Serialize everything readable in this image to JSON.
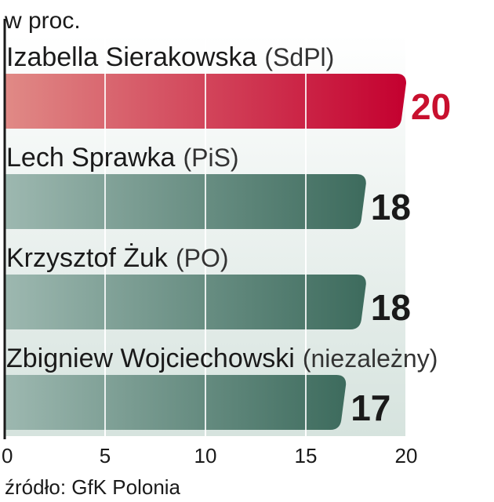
{
  "chart_data": {
    "type": "bar",
    "orientation": "horizontal",
    "unit_label": "w proc.",
    "categories": [
      {
        "name": "Izabella Sierakowska",
        "party": "(SdPl)"
      },
      {
        "name": "Lech Sprawka",
        "party": "(PiS)"
      },
      {
        "name": "Krzysztof Żuk",
        "party": "(PO)"
      },
      {
        "name": "Zbigniew Wojciechowski",
        "party": "(niezależny)"
      }
    ],
    "values": [
      20,
      18,
      18,
      17
    ],
    "value_labels": [
      "20",
      "18",
      "18",
      "17"
    ],
    "xlim": [
      0,
      20
    ],
    "xticks": [
      "0",
      "5",
      "10",
      "15",
      "20"
    ],
    "grid": true,
    "source": "źródło: GfK Polonia",
    "colors": {
      "highlight_start": "#e08a86",
      "highlight_end": "#c4002f",
      "bar_start": "#9db8b0",
      "bar_end": "#3d6b5d",
      "highlight_label": "#c8102e",
      "label": "#1a1a1a",
      "plot_bg_top": "#ffffff",
      "plot_bg_bottom": "#d6e3de"
    }
  }
}
